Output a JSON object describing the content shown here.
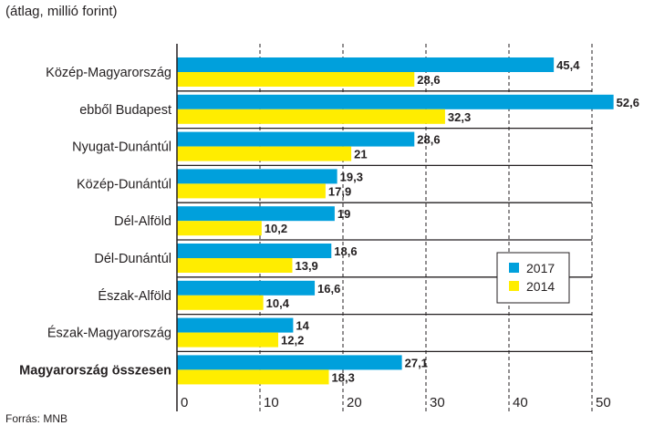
{
  "chart_data": {
    "type": "bar",
    "orientation": "horizontal",
    "subtitle": "(átlag, millió forint)",
    "source": "Forrás: MNB",
    "categories": [
      "Közép-Magyarország",
      "ebből Budapest",
      "Nyugat-Dunántúl",
      "Közép-Dunántúl",
      "Dél-Alföld",
      "Dél-Dunántúl",
      "Észak-Alföld",
      "Észak-Magyarország",
      "Magyarország összesen"
    ],
    "bold_categories": [
      "Magyarország összesen"
    ],
    "series": [
      {
        "name": "2017",
        "color": "#00a0dc",
        "values": [
          45.4,
          52.6,
          28.6,
          19.3,
          19,
          18.6,
          16.6,
          14,
          27.1
        ],
        "labels": [
          "45,4",
          "52,6",
          "28,6",
          "19,3",
          "19",
          "18,6",
          "16,6",
          "14",
          "27,1"
        ]
      },
      {
        "name": "2014",
        "color": "#ffed00",
        "values": [
          28.6,
          32.3,
          21,
          17.9,
          10.2,
          13.9,
          10.4,
          12.2,
          18.3
        ],
        "labels": [
          "28,6",
          "32,3",
          "21",
          "17,9",
          "10,2",
          "13,9",
          "10,4",
          "12,2",
          "18,3"
        ]
      }
    ],
    "xlim": [
      0,
      55
    ],
    "xticks": [
      0,
      10,
      20,
      30,
      40,
      50
    ],
    "xtick_labels": [
      "0",
      "10",
      "20",
      "30",
      "40",
      "50"
    ],
    "grid": "vertical-dashed",
    "legend_position": "right-middle",
    "xlabel": "",
    "ylabel": ""
  }
}
